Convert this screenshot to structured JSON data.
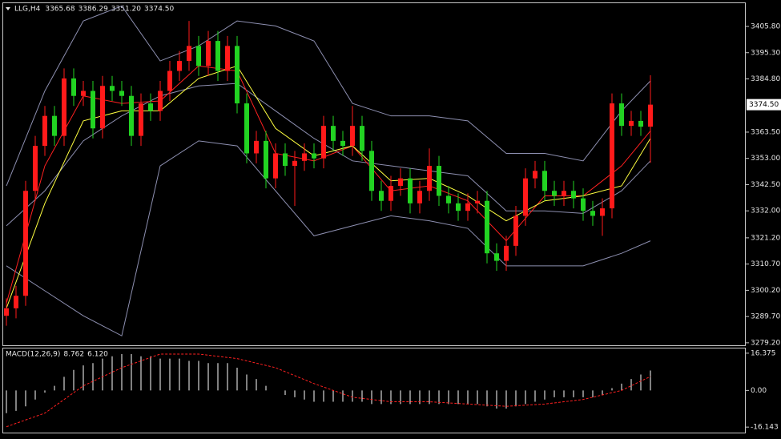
{
  "chart_data": [
    {
      "type": "candlestick",
      "title": "LLG,H4",
      "quote": [
        {
          "value": 3365.68,
          "label": "3365.68"
        },
        {
          "value": 3386.29,
          "label": "3386.29"
        },
        {
          "value": 3351.2,
          "label": "3351.20"
        },
        {
          "value": 3374.5,
          "label": "3374.50"
        }
      ],
      "open": [
        3290,
        3293,
        3298,
        3340,
        3358,
        3370,
        3362,
        3385,
        3378,
        3380,
        3365,
        3382,
        3380,
        3378,
        3362,
        3375,
        3372,
        3380,
        3388,
        3392,
        3398,
        3390,
        3400,
        3388,
        3398,
        3375,
        3355,
        3360,
        3345,
        3355,
        3350,
        3352,
        3355,
        3353,
        3366,
        3360,
        3358,
        3366,
        3356,
        3340,
        3336,
        3342,
        3345,
        3335,
        3340,
        3350,
        3338,
        3335,
        3332,
        3335,
        3336,
        3315,
        3312,
        3318,
        3330,
        3345,
        3348,
        3340,
        3338,
        3340,
        3337,
        3332,
        3330,
        3333,
        3375,
        3366,
        3368,
        3365.68
      ],
      "high": [
        3297,
        3302,
        3344,
        3362,
        3374,
        3374,
        3389,
        3389,
        3384,
        3384,
        3386,
        3386,
        3384,
        3382,
        3379,
        3379,
        3384,
        3392,
        3396,
        3408,
        3402,
        3404,
        3404,
        3402,
        3402,
        3379,
        3364,
        3364,
        3359,
        3359,
        3356,
        3359,
        3359,
        3370,
        3370,
        3364,
        3374,
        3370,
        3360,
        3344,
        3346,
        3349,
        3349,
        3344,
        3357,
        3354,
        3342,
        3339,
        3339,
        3340,
        3340,
        3319,
        3322,
        3334,
        3349,
        3352,
        3352,
        3344,
        3344,
        3344,
        3341,
        3336,
        3337,
        3379,
        3379,
        3372,
        3372,
        3386.29
      ],
      "low": [
        3286,
        3289,
        3294,
        3336,
        3354,
        3358,
        3358,
        3374,
        3374,
        3361,
        3361,
        3376,
        3374,
        3358,
        3358,
        3368,
        3368,
        3376,
        3384,
        3388,
        3386,
        3386,
        3384,
        3384,
        3371,
        3351,
        3351,
        3341,
        3341,
        3346,
        3334,
        3348,
        3349,
        3349,
        3356,
        3354,
        3354,
        3352,
        3336,
        3332,
        3332,
        3338,
        3331,
        3331,
        3336,
        3334,
        3331,
        3328,
        3328,
        3331,
        3311,
        3308,
        3308,
        3314,
        3326,
        3341,
        3336,
        3334,
        3334,
        3333,
        3328,
        3326,
        3322,
        3329,
        3362,
        3362,
        3362,
        3351.2
      ],
      "close": [
        3293,
        3298,
        3340,
        3358,
        3370,
        3362,
        3385,
        3378,
        3380,
        3365,
        3382,
        3380,
        3378,
        3362,
        3375,
        3372,
        3380,
        3388,
        3392,
        3398,
        3390,
        3400,
        3388,
        3398,
        3375,
        3355,
        3360,
        3345,
        3355,
        3350,
        3352,
        3355,
        3353,
        3366,
        3360,
        3358,
        3366,
        3356,
        3340,
        3336,
        3342,
        3345,
        3335,
        3340,
        3350,
        3338,
        3335,
        3332,
        3335,
        3336,
        3315,
        3312,
        3318,
        3330,
        3345,
        3348,
        3340,
        3338,
        3340,
        3337,
        3332,
        3330,
        3333,
        3375,
        3366,
        3368,
        3365.68,
        3374.5
      ],
      "up_color": "#ff1a1a",
      "down_color": "#22d322",
      "ylim": [
        3278.2,
        3415.1
      ],
      "yticks": [
        {
          "value": 3405.8,
          "label": "3405.80"
        },
        {
          "value": 3395.3,
          "label": "3395.30"
        },
        {
          "value": 3384.8,
          "label": "3384.80"
        },
        {
          "value": 3363.5,
          "label": "3363.50"
        },
        {
          "value": 3353,
          "label": "3353.00"
        },
        {
          "value": 3342.5,
          "label": "3342.50"
        },
        {
          "value": 3332,
          "label": "3332.00"
        },
        {
          "value": 3321.2,
          "label": "3321.20"
        },
        {
          "value": 3310.7,
          "label": "3310.70"
        },
        {
          "value": 3300.2,
          "label": "3300.20"
        },
        {
          "value": 3289.7,
          "label": "3289.70"
        },
        {
          "value": 3279.2,
          "label": "3279.20"
        }
      ],
      "current_price": {
        "value": 3374.5,
        "label": "3374.50"
      },
      "overlay_x": [
        0,
        4,
        8,
        12,
        16,
        20,
        24,
        28,
        32,
        36,
        40,
        44,
        48,
        52,
        56,
        60,
        64,
        67
      ],
      "overlays": [
        {
          "color": "#8d8fb0",
          "values": [
            3342,
            3380,
            3408,
            3414,
            3392,
            3398,
            3408,
            3406,
            3400,
            3375,
            3370,
            3370,
            3368,
            3355,
            3355,
            3352,
            3372,
            3384
          ]
        },
        {
          "color": "#8d8fb0",
          "values": [
            3326,
            3340,
            3360,
            3370,
            3378,
            3382,
            3383,
            3372,
            3361,
            3352,
            3350,
            3348,
            3346,
            3332,
            3332,
            3331,
            3340,
            3352
          ]
        },
        {
          "color": "#8d8fb0",
          "values": [
            3310,
            3300,
            3290,
            3282,
            3350,
            3360,
            3358,
            3340,
            3322,
            3326,
            3330,
            3328,
            3325,
            3310,
            3310,
            3310,
            3315,
            3320
          ]
        },
        {
          "color": "#ff2020",
          "values": [
            3295,
            3350,
            3378,
            3375,
            3376,
            3390,
            3388,
            3355,
            3352,
            3358,
            3340,
            3342,
            3336,
            3320,
            3338,
            3338,
            3350,
            3364
          ]
        },
        {
          "color": "#ffff40",
          "values": [
            3293,
            3335,
            3368,
            3372,
            3372,
            3385,
            3390,
            3365,
            3354,
            3358,
            3344,
            3345,
            3338,
            3328,
            3336,
            3338,
            3342,
            3361
          ]
        }
      ]
    },
    {
      "type": "macd",
      "title": "MACD(12,26,9)",
      "readout": [
        {
          "value": 8.762,
          "label": "8.762"
        },
        {
          "value": 6.12,
          "label": "6.120"
        }
      ],
      "histogram": [
        -10,
        -9,
        -7,
        -4,
        -1,
        2,
        6,
        9,
        11,
        12,
        14,
        15,
        16,
        16,
        15,
        15,
        14,
        14,
        14,
        13,
        13,
        12,
        12,
        12,
        10,
        7,
        5,
        2,
        0,
        -2,
        -3,
        -4,
        -5,
        -5,
        -5,
        -5,
        -5,
        -5,
        -6,
        -6,
        -6,
        -6,
        -6,
        -6,
        -6,
        -6,
        -6,
        -6,
        -6,
        -6,
        -7,
        -8,
        -8,
        -7,
        -6,
        -5,
        -4,
        -3,
        -3,
        -3,
        -3,
        -3,
        -2,
        1,
        3,
        5,
        7,
        8.762
      ],
      "histogram_color": "#ffffff",
      "signal_x": [
        0,
        4,
        8,
        12,
        16,
        20,
        24,
        28,
        32,
        36,
        40,
        44,
        48,
        52,
        56,
        60,
        64,
        67
      ],
      "signal": [
        -16,
        -10,
        2,
        10,
        16,
        16,
        14,
        10,
        3,
        -3,
        -5,
        -5,
        -6,
        -7,
        -6,
        -4,
        0,
        6.12
      ],
      "signal_color": "#ff2020",
      "ylim": [
        -18.56,
        18.45
      ],
      "yticks": [
        {
          "value": 16.375,
          "label": "16.375"
        },
        {
          "value": 0,
          "label": "0.00"
        },
        {
          "value": -16.143,
          "label": "-16.143"
        }
      ]
    }
  ]
}
